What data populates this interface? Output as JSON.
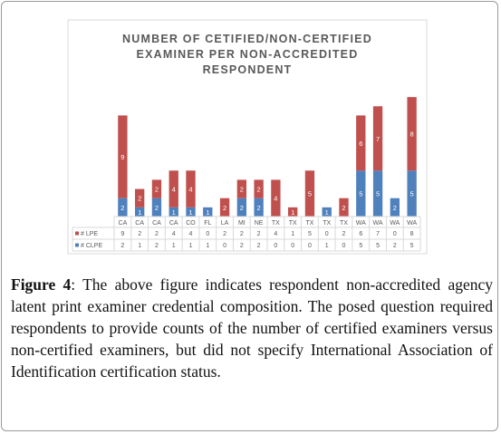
{
  "chart_data": {
    "type": "stacked-bar",
    "title": [
      "NUMBER OF CETIFIED/NON-CERTIFIED",
      "EXAMINER PER NON-ACCREDITED",
      "RESPONDENT"
    ],
    "categories": [
      "CA",
      "CA",
      "CA",
      "CA",
      "CO",
      "FL",
      "LA",
      "MI",
      "NE",
      "TX",
      "TX",
      "TX",
      "TX",
      "TX",
      "WA",
      "WA",
      "WA",
      "WA"
    ],
    "series": [
      {
        "name": "# CLPE",
        "color": "#4f81bd",
        "values": [
          2,
          1,
          2,
          1,
          1,
          1,
          0,
          2,
          2,
          0,
          0,
          0,
          1,
          0,
          5,
          5,
          2,
          5
        ]
      },
      {
        "name": "# LPE",
        "color": "#c0504d",
        "values": [
          9,
          2,
          2,
          4,
          4,
          0,
          2,
          2,
          2,
          4,
          1,
          5,
          0,
          2,
          6,
          7,
          0,
          8
        ]
      }
    ],
    "ylim": [
      0,
      14
    ]
  },
  "caption": {
    "label": "Figure 4",
    "text": ": The above figure indicates respondent non-accredited agency latent print examiner credential composition. The posed question required respondents to provide counts of the number of certified examiners versus non-certified examiners, but did not specify International Association of Identification certification status."
  }
}
